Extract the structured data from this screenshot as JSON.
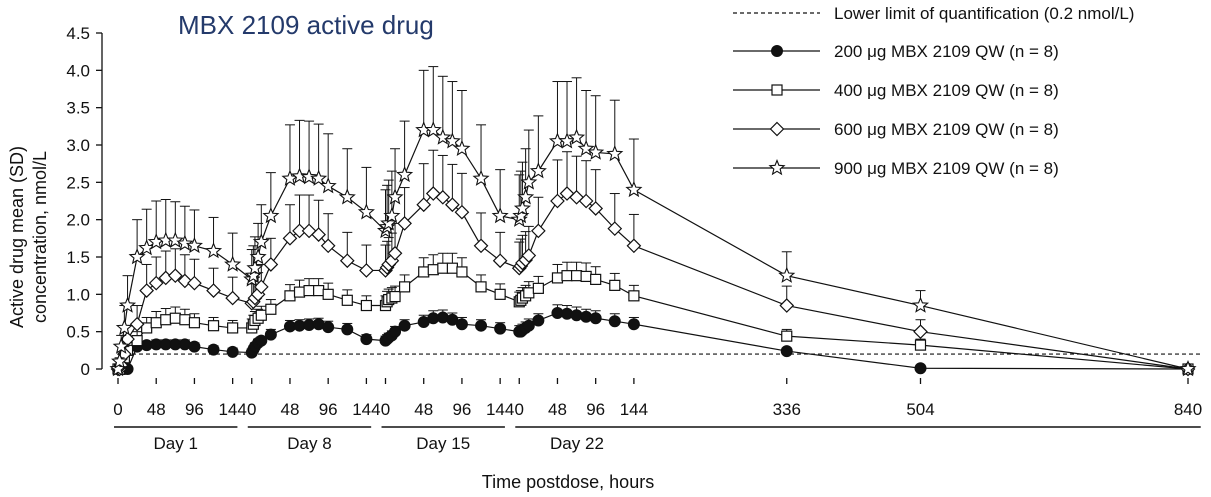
{
  "chart_data": {
    "type": "line",
    "title": "MBX 2109 active drug",
    "xlabel": "Time postdose, hours",
    "ylabel_line1": "Active drug mean (SD)",
    "ylabel_line2": "concentration, nmol/L",
    "ylim": [
      0,
      4.5
    ],
    "yticks": [
      "0",
      "0.5",
      "1.0",
      "1.5",
      "2.0",
      "2.5",
      "3.0",
      "3.5",
      "4.0",
      "4.5"
    ],
    "yticks_values": [
      0,
      0.5,
      1.0,
      1.5,
      2.0,
      2.5,
      3.0,
      3.5,
      4.0,
      4.5
    ],
    "xticks": [
      {
        "label": "0",
        "t": 0
      },
      {
        "label": "48",
        "t": 48
      },
      {
        "label": "96",
        "t": 96
      },
      {
        "label": "144",
        "t": 144
      },
      {
        "label": "0",
        "t": 168
      },
      {
        "label": "48",
        "t": 216
      },
      {
        "label": "96",
        "t": 264
      },
      {
        "label": "144",
        "t": 312
      },
      {
        "label": "0",
        "t": 336
      },
      {
        "label": "48",
        "t": 384
      },
      {
        "label": "96",
        "t": 432
      },
      {
        "label": "144",
        "t": 480
      },
      {
        "label": "0",
        "t": 504
      },
      {
        "label": "48",
        "t": 552
      },
      {
        "label": "96",
        "t": 600
      },
      {
        "label": "144",
        "t": 648
      },
      {
        "label": "336",
        "t": 840
      },
      {
        "label": "504",
        "t": 1008
      },
      {
        "label": "840",
        "t": 1344
      }
    ],
    "day_groups": [
      {
        "label": "Day 1",
        "t_start": -5,
        "t_end": 150
      },
      {
        "label": "Day 8",
        "t_start": 163,
        "t_end": 318
      },
      {
        "label": "Day 15",
        "t_start": 331,
        "t_end": 486
      },
      {
        "label": "Day 22",
        "t_start": 499,
        "t_end": 1360
      }
    ],
    "lloq": {
      "label": "Lower limit of quantification (0.2 nmol/L)",
      "value": 0.2
    },
    "t": [
      0,
      2,
      4,
      8,
      12,
      24,
      36,
      48,
      60,
      72,
      84,
      96,
      120,
      144,
      168,
      170,
      172,
      176,
      180,
      192,
      216,
      228,
      240,
      252,
      264,
      288,
      312,
      336,
      338,
      340,
      344,
      348,
      360,
      384,
      396,
      408,
      420,
      432,
      456,
      480,
      504,
      506,
      508,
      512,
      516,
      528,
      552,
      564,
      576,
      588,
      600,
      624,
      648,
      840,
      1008,
      1344
    ],
    "series": [
      {
        "name": "200 μg MBX 2109 QW (n = 8)",
        "marker": "filled-circle",
        "values": [
          0,
          0,
          0,
          0,
          0,
          0.3,
          0.32,
          0.33,
          0.33,
          0.33,
          0.33,
          0.3,
          0.26,
          0.23,
          0.22,
          0.26,
          0.3,
          0.35,
          0.38,
          0.46,
          0.57,
          0.58,
          0.59,
          0.6,
          0.56,
          0.53,
          0.4,
          0.38,
          0.4,
          0.42,
          0.45,
          0.5,
          0.58,
          0.63,
          0.68,
          0.69,
          0.66,
          0.6,
          0.58,
          0.54,
          0.5,
          0.5,
          0.52,
          0.55,
          0.58,
          0.65,
          0.75,
          0.74,
          0.72,
          0.7,
          0.68,
          0.64,
          0.6,
          0.24,
          0.01,
          0
        ],
        "sd": [
          0,
          0,
          0,
          0,
          0,
          0.05,
          0.05,
          0.06,
          0.06,
          0.06,
          0.06,
          0.05,
          0.05,
          0.05,
          0.05,
          0.05,
          0.05,
          0.05,
          0.05,
          0.07,
          0.08,
          0.08,
          0.08,
          0.08,
          0.08,
          0.08,
          0.06,
          0.06,
          0.06,
          0.06,
          0.06,
          0.07,
          0.08,
          0.09,
          0.1,
          0.1,
          0.09,
          0.09,
          0.08,
          0.08,
          0.08,
          0.08,
          0.08,
          0.08,
          0.09,
          0.09,
          0.11,
          0.11,
          0.11,
          0.1,
          0.1,
          0.1,
          0.09,
          0.04,
          0,
          0
        ]
      },
      {
        "name": "400 μg MBX 2109 QW (n = 8)",
        "marker": "open-square",
        "values": [
          0,
          0,
          0.05,
          0.15,
          0.25,
          0.38,
          0.55,
          0.62,
          0.66,
          0.68,
          0.66,
          0.62,
          0.58,
          0.55,
          0.55,
          0.6,
          0.65,
          0.68,
          0.72,
          0.8,
          0.98,
          1.03,
          1.05,
          1.05,
          1.0,
          0.92,
          0.85,
          0.85,
          0.9,
          0.93,
          0.95,
          0.97,
          1.1,
          1.3,
          1.33,
          1.35,
          1.35,
          1.3,
          1.1,
          1.0,
          0.9,
          0.92,
          0.95,
          0.98,
          1.02,
          1.08,
          1.22,
          1.25,
          1.25,
          1.24,
          1.2,
          1.12,
          0.98,
          0.44,
          0.32,
          0
        ],
        "sd": [
          0,
          0,
          0.03,
          0.07,
          0.1,
          0.12,
          0.14,
          0.15,
          0.15,
          0.15,
          0.14,
          0.12,
          0.11,
          0.1,
          0.12,
          0.12,
          0.12,
          0.12,
          0.12,
          0.13,
          0.15,
          0.16,
          0.16,
          0.16,
          0.15,
          0.14,
          0.13,
          0.13,
          0.14,
          0.14,
          0.14,
          0.14,
          0.16,
          0.19,
          0.2,
          0.2,
          0.2,
          0.19,
          0.16,
          0.14,
          0.13,
          0.13,
          0.14,
          0.14,
          0.15,
          0.16,
          0.18,
          0.18,
          0.18,
          0.18,
          0.17,
          0.16,
          0.14,
          0.09,
          0.08,
          0
        ]
      },
      {
        "name": "600 μg MBX 2109 QW (n = 8)",
        "marker": "open-diamond",
        "values": [
          0,
          0,
          0.05,
          0.2,
          0.4,
          0.6,
          1.05,
          1.15,
          1.22,
          1.25,
          1.18,
          1.15,
          1.05,
          0.95,
          0.88,
          0.9,
          0.95,
          1.0,
          1.1,
          1.4,
          1.75,
          1.85,
          1.85,
          1.8,
          1.65,
          1.45,
          1.32,
          1.32,
          1.36,
          1.4,
          1.45,
          1.55,
          1.95,
          2.2,
          2.35,
          2.3,
          2.2,
          2.1,
          1.65,
          1.45,
          1.35,
          1.38,
          1.42,
          1.46,
          1.52,
          1.85,
          2.25,
          2.35,
          2.3,
          2.25,
          2.15,
          1.88,
          1.65,
          0.85,
          0.5,
          0
        ],
        "sd": [
          0,
          0,
          0.04,
          0.1,
          0.18,
          0.25,
          0.35,
          0.35,
          0.36,
          0.36,
          0.35,
          0.32,
          0.3,
          0.28,
          0.26,
          0.27,
          0.28,
          0.29,
          0.3,
          0.35,
          0.45,
          0.48,
          0.48,
          0.46,
          0.43,
          0.38,
          0.34,
          0.34,
          0.35,
          0.36,
          0.37,
          0.4,
          0.48,
          0.55,
          0.58,
          0.56,
          0.54,
          0.52,
          0.44,
          0.38,
          0.35,
          0.36,
          0.37,
          0.38,
          0.39,
          0.45,
          0.55,
          0.56,
          0.55,
          0.54,
          0.52,
          0.47,
          0.42,
          0.26,
          0.16,
          0
        ]
      },
      {
        "name": "900 μg MBX 2109 QW (n = 8)",
        "marker": "open-star",
        "values": [
          0,
          0.1,
          0.3,
          0.55,
          0.85,
          1.5,
          1.62,
          1.7,
          1.72,
          1.72,
          1.68,
          1.65,
          1.58,
          1.4,
          1.2,
          1.25,
          1.35,
          1.5,
          1.7,
          2.05,
          2.55,
          2.58,
          2.57,
          2.55,
          2.45,
          2.3,
          2.1,
          1.85,
          1.9,
          1.95,
          2.05,
          2.3,
          2.6,
          3.2,
          3.2,
          3.1,
          3.05,
          2.95,
          2.55,
          2.05,
          2.0,
          2.05,
          2.15,
          2.3,
          2.5,
          2.65,
          3.05,
          3.05,
          3.1,
          2.95,
          2.9,
          2.88,
          2.4,
          1.25,
          0.85,
          0
        ],
        "sd": [
          0,
          0.05,
          0.15,
          0.3,
          0.4,
          0.5,
          0.52,
          0.55,
          0.55,
          0.52,
          0.5,
          0.48,
          0.45,
          0.42,
          0.4,
          0.4,
          0.42,
          0.45,
          0.5,
          0.58,
          0.72,
          0.75,
          0.75,
          0.73,
          0.7,
          0.65,
          0.6,
          0.55,
          0.56,
          0.58,
          0.6,
          0.65,
          0.72,
          0.8,
          0.85,
          0.82,
          0.8,
          0.78,
          0.72,
          0.62,
          0.6,
          0.6,
          0.62,
          0.65,
          0.7,
          0.74,
          0.8,
          0.8,
          0.8,
          0.78,
          0.76,
          0.72,
          0.68,
          0.32,
          0.2,
          0
        ]
      }
    ],
    "legend": "top-right",
    "grid": false
  }
}
